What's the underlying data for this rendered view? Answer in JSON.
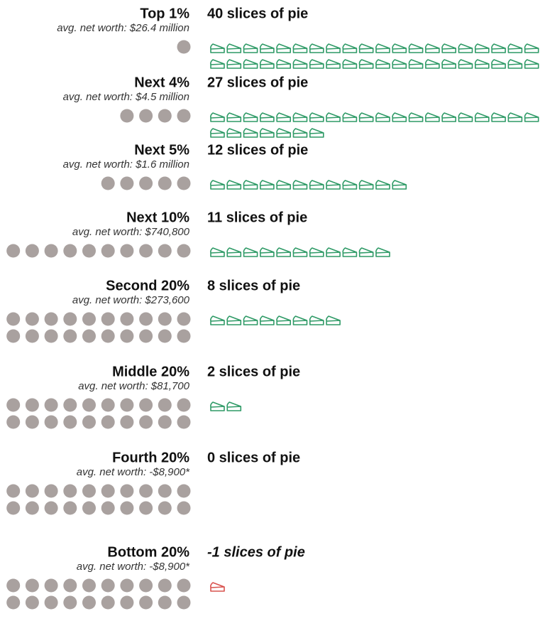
{
  "chart_data": {
    "type": "pictogram",
    "categories": [
      "Top 1%",
      "Next 4%",
      "Next 5%",
      "Next 10%",
      "Second 20%",
      "Middle 20%",
      "Fourth 20%",
      "Bottom 20%"
    ],
    "subtitles": [
      "avg. net worth: $26.4 million",
      "avg. net worth: $4.5 million",
      "avg. net worth: $1.6 million",
      "avg. net worth: $740,800",
      "avg. net worth: $273,600",
      "avg. net worth: $81,700",
      "avg. net worth: -$8,900*",
      "avg. net worth: -$8,900*"
    ],
    "population": [
      1,
      4,
      5,
      10,
      20,
      20,
      20,
      20
    ],
    "values": [
      40,
      27,
      12,
      11,
      8,
      2,
      0,
      -1
    ],
    "value_labels": [
      "40 slices of pie",
      "27 slices of pie",
      "12 slices of pie",
      "11 slices of pie",
      "8 slices of pie",
      "2 slices of pie",
      "0 slices of pie",
      "-1 slices of pie"
    ],
    "color": "#2e9a66",
    "negative_color": "#d9534f",
    "dot_color": "#a9a19f"
  }
}
